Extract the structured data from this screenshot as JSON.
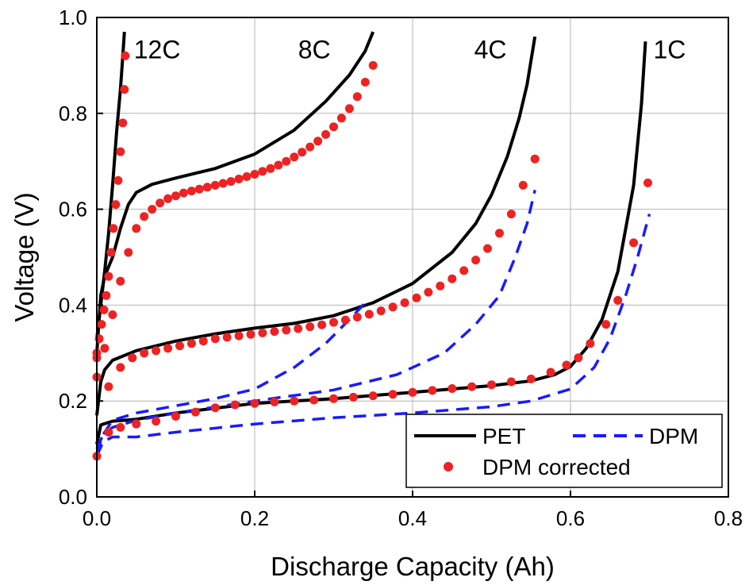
{
  "chart_data": {
    "type": "line",
    "xlabel": "Discharge Capacity (Ah)",
    "ylabel": "Voltage (V)",
    "xlim": [
      0.0,
      0.8
    ],
    "ylim": [
      0.0,
      1.0
    ],
    "xticks": [
      "0.0",
      "0.2",
      "0.4",
      "0.6",
      "0.8"
    ],
    "yticks": [
      "0.0",
      "0.2",
      "0.4",
      "0.6",
      "0.8",
      "1.0"
    ],
    "grid": true,
    "legend_position": "bottom-right",
    "legend": [
      {
        "label": "PET",
        "style": "solid",
        "color": "#000000"
      },
      {
        "label": "DPM",
        "style": "dashed",
        "color": "#1a1aff"
      },
      {
        "label": "DPM corrected",
        "style": "markers",
        "color": "#ee2222"
      }
    ],
    "annotations": [
      {
        "text": "12C",
        "x": 0.047,
        "y": 0.915
      },
      {
        "text": "8C",
        "x": 0.255,
        "y": 0.915
      },
      {
        "text": "4C",
        "x": 0.478,
        "y": 0.915
      },
      {
        "text": "1C",
        "x": 0.705,
        "y": 0.915
      }
    ],
    "series": [
      {
        "rate": "1C",
        "kind": "PET",
        "x": [
          0.0,
          0.005,
          0.02,
          0.05,
          0.1,
          0.2,
          0.3,
          0.4,
          0.5,
          0.55,
          0.58,
          0.6,
          0.62,
          0.64,
          0.66,
          0.68,
          0.69,
          0.695
        ],
        "y": [
          0.11,
          0.15,
          0.158,
          0.162,
          0.175,
          0.195,
          0.205,
          0.218,
          0.232,
          0.242,
          0.255,
          0.272,
          0.31,
          0.37,
          0.47,
          0.65,
          0.82,
          0.95
        ]
      },
      {
        "rate": "4C",
        "kind": "PET",
        "x": [
          0.0,
          0.005,
          0.01,
          0.02,
          0.05,
          0.1,
          0.15,
          0.2,
          0.25,
          0.3,
          0.35,
          0.4,
          0.45,
          0.48,
          0.5,
          0.52,
          0.535,
          0.545,
          0.555
        ],
        "y": [
          0.17,
          0.24,
          0.265,
          0.285,
          0.305,
          0.325,
          0.34,
          0.352,
          0.362,
          0.378,
          0.405,
          0.445,
          0.51,
          0.57,
          0.63,
          0.71,
          0.79,
          0.86,
          0.96
        ]
      },
      {
        "rate": "8C",
        "kind": "PET",
        "x": [
          0.0,
          0.005,
          0.01,
          0.02,
          0.03,
          0.04,
          0.05,
          0.07,
          0.1,
          0.15,
          0.2,
          0.25,
          0.29,
          0.32,
          0.34,
          0.35
        ],
        "y": [
          0.3,
          0.42,
          0.46,
          0.5,
          0.56,
          0.61,
          0.635,
          0.652,
          0.665,
          0.685,
          0.715,
          0.765,
          0.825,
          0.88,
          0.93,
          0.97
        ]
      },
      {
        "rate": "12C",
        "kind": "PET",
        "x": [
          0.0,
          0.005,
          0.01,
          0.015,
          0.02,
          0.025,
          0.03,
          0.033,
          0.035
        ],
        "y": [
          0.33,
          0.4,
          0.47,
          0.55,
          0.65,
          0.76,
          0.85,
          0.92,
          0.97
        ]
      },
      {
        "rate": "1C",
        "kind": "DPM",
        "x": [
          0.0,
          0.008,
          0.02,
          0.05,
          0.1,
          0.2,
          0.3,
          0.4,
          0.5,
          0.55,
          0.6,
          0.63,
          0.65,
          0.67,
          0.685,
          0.7
        ],
        "y": [
          0.085,
          0.115,
          0.125,
          0.125,
          0.135,
          0.152,
          0.165,
          0.175,
          0.188,
          0.2,
          0.225,
          0.27,
          0.33,
          0.42,
          0.5,
          0.59
        ]
      },
      {
        "rate": "4C",
        "kind": "DPM",
        "x": [
          0.0,
          0.008,
          0.02,
          0.05,
          0.1,
          0.2,
          0.3,
          0.38,
          0.44,
          0.48,
          0.51,
          0.53,
          0.545,
          0.555
        ],
        "y": [
          0.1,
          0.13,
          0.145,
          0.16,
          0.175,
          0.2,
          0.223,
          0.255,
          0.3,
          0.36,
          0.42,
          0.5,
          0.57,
          0.64
        ]
      },
      {
        "rate": "8C",
        "kind": "DPM",
        "x": [
          0.0,
          0.008,
          0.02,
          0.05,
          0.1,
          0.15,
          0.2,
          0.25,
          0.29,
          0.32,
          0.34
        ],
        "y": [
          0.09,
          0.13,
          0.16,
          0.175,
          0.19,
          0.205,
          0.225,
          0.27,
          0.32,
          0.37,
          0.405
        ]
      },
      {
        "rate": "1C",
        "kind": "DPM corrected",
        "x": [
          0.0,
          0.015,
          0.03,
          0.05,
          0.075,
          0.1,
          0.125,
          0.15,
          0.175,
          0.2,
          0.225,
          0.25,
          0.275,
          0.3,
          0.325,
          0.35,
          0.375,
          0.4,
          0.425,
          0.45,
          0.475,
          0.5,
          0.525,
          0.55,
          0.575,
          0.595,
          0.61,
          0.625,
          0.645,
          0.66,
          0.68,
          0.698
        ],
        "y": [
          0.085,
          0.135,
          0.145,
          0.152,
          0.158,
          0.168,
          0.177,
          0.186,
          0.192,
          0.195,
          0.198,
          0.2,
          0.202,
          0.205,
          0.208,
          0.211,
          0.214,
          0.218,
          0.222,
          0.226,
          0.23,
          0.234,
          0.24,
          0.246,
          0.26,
          0.275,
          0.29,
          0.32,
          0.36,
          0.41,
          0.53,
          0.655
        ]
      },
      {
        "rate": "4C",
        "kind": "DPM corrected",
        "x": [
          0.0,
          0.015,
          0.03,
          0.045,
          0.06,
          0.075,
          0.09,
          0.105,
          0.12,
          0.135,
          0.15,
          0.165,
          0.18,
          0.195,
          0.21,
          0.225,
          0.24,
          0.255,
          0.27,
          0.285,
          0.3,
          0.315,
          0.33,
          0.345,
          0.36,
          0.375,
          0.39,
          0.405,
          0.42,
          0.435,
          0.45,
          0.465,
          0.48,
          0.495,
          0.51,
          0.525,
          0.54,
          0.555
        ],
        "y": [
          0.25,
          0.23,
          0.27,
          0.29,
          0.3,
          0.305,
          0.31,
          0.315,
          0.32,
          0.325,
          0.33,
          0.333,
          0.336,
          0.339,
          0.342,
          0.345,
          0.348,
          0.351,
          0.355,
          0.359,
          0.364,
          0.369,
          0.375,
          0.381,
          0.388,
          0.396,
          0.405,
          0.415,
          0.427,
          0.44,
          0.455,
          0.472,
          0.494,
          0.518,
          0.55,
          0.59,
          0.65,
          0.705
        ]
      },
      {
        "rate": "8C",
        "kind": "DPM corrected",
        "x": [
          0.0,
          0.01,
          0.02,
          0.03,
          0.04,
          0.05,
          0.06,
          0.07,
          0.08,
          0.09,
          0.1,
          0.11,
          0.12,
          0.13,
          0.14,
          0.15,
          0.16,
          0.17,
          0.18,
          0.19,
          0.2,
          0.21,
          0.22,
          0.23,
          0.24,
          0.25,
          0.26,
          0.27,
          0.28,
          0.29,
          0.3,
          0.31,
          0.32,
          0.33,
          0.34,
          0.35
        ],
        "y": [
          0.29,
          0.31,
          0.38,
          0.45,
          0.51,
          0.56,
          0.585,
          0.6,
          0.613,
          0.622,
          0.628,
          0.634,
          0.638,
          0.642,
          0.646,
          0.65,
          0.654,
          0.658,
          0.663,
          0.668,
          0.673,
          0.679,
          0.685,
          0.692,
          0.7,
          0.709,
          0.719,
          0.73,
          0.742,
          0.756,
          0.772,
          0.79,
          0.81,
          0.835,
          0.865,
          0.9
        ]
      },
      {
        "rate": "12C",
        "kind": "DPM corrected",
        "x": [
          0.0,
          0.003,
          0.006,
          0.009,
          0.012,
          0.015,
          0.018,
          0.021,
          0.024,
          0.027,
          0.03,
          0.033,
          0.035,
          0.036
        ],
        "y": [
          0.3,
          0.33,
          0.36,
          0.39,
          0.42,
          0.46,
          0.51,
          0.56,
          0.61,
          0.66,
          0.72,
          0.78,
          0.85,
          0.92
        ]
      }
    ]
  }
}
